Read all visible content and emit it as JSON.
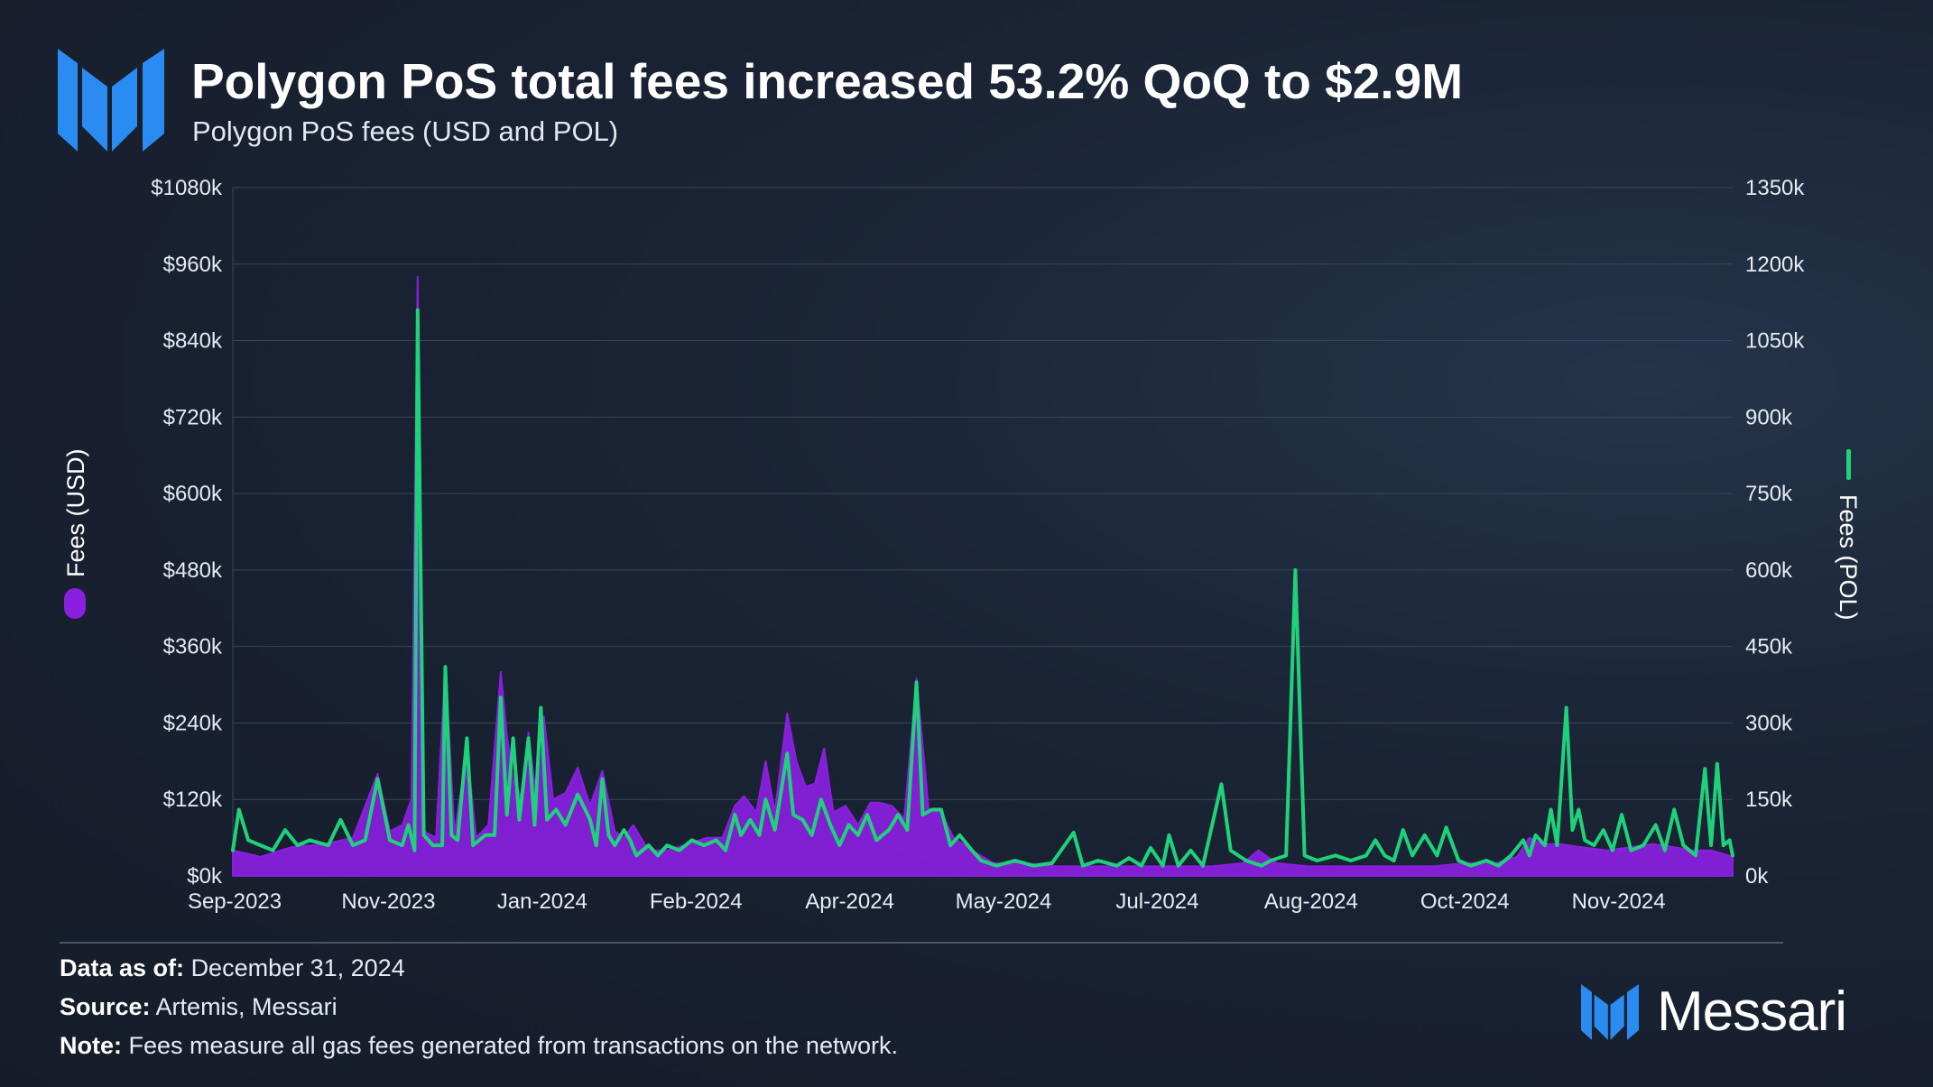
{
  "header": {
    "title": "Polygon PoS total fees increased 53.2% QoQ to $2.9M",
    "subtitle": "Polygon PoS fees (USD and POL)"
  },
  "colors": {
    "usd_series": "#8a1fe0",
    "pol_series": "#1fd17a",
    "grid": "#3a4556",
    "brand_blue": "#2a8cf0"
  },
  "chart_data": {
    "type": "area",
    "title": "Polygon PoS fees (USD and POL)",
    "x_tick_labels": [
      "Sep-2023",
      "Nov-2023",
      "Jan-2024",
      "Feb-2024",
      "Apr-2024",
      "May-2024",
      "Jul-2024",
      "Aug-2024",
      "Oct-2024",
      "Nov-2024"
    ],
    "y_left": {
      "label": "Fees (USD)",
      "ylim": [
        0,
        1080000
      ],
      "ticks": [
        "$0k",
        "$120k",
        "$240k",
        "$360k",
        "$480k",
        "$600k",
        "$720k",
        "$840k",
        "$960k",
        "$1080k"
      ]
    },
    "y_right": {
      "label": "Fees (POL)",
      "ylim": [
        0,
        1350000
      ],
      "ticks": [
        "0k",
        "150k",
        "300k",
        "450k",
        "600k",
        "750k",
        "900k",
        "1050k",
        "1200k",
        "1350k"
      ]
    },
    "x_range": [
      "2023-09-01",
      "2024-12-31"
    ],
    "series": [
      {
        "name": "Fees (USD)",
        "axis": "left",
        "style": "area",
        "points": [
          [
            "2023-09-01",
            40000
          ],
          [
            "2023-09-10",
            30000
          ],
          [
            "2023-09-20",
            45000
          ],
          [
            "2023-10-01",
            50000
          ],
          [
            "2023-10-10",
            60000
          ],
          [
            "2023-10-18",
            160000
          ],
          [
            "2023-10-22",
            70000
          ],
          [
            "2023-10-26",
            80000
          ],
          [
            "2023-10-29",
            120000
          ],
          [
            "2023-10-31",
            940000
          ],
          [
            "2023-11-02",
            70000
          ],
          [
            "2023-11-06",
            60000
          ],
          [
            "2023-11-09",
            330000
          ],
          [
            "2023-11-12",
            65000
          ],
          [
            "2023-11-16",
            200000
          ],
          [
            "2023-11-19",
            60000
          ],
          [
            "2023-11-23",
            80000
          ],
          [
            "2023-11-27",
            320000
          ],
          [
            "2023-11-29",
            220000
          ],
          [
            "2023-12-01",
            150000
          ],
          [
            "2023-12-04",
            120000
          ],
          [
            "2023-12-06",
            225000
          ],
          [
            "2023-12-09",
            100000
          ],
          [
            "2023-12-11",
            250000
          ],
          [
            "2023-12-14",
            120000
          ],
          [
            "2023-12-18",
            130000
          ],
          [
            "2023-12-22",
            170000
          ],
          [
            "2023-12-26",
            110000
          ],
          [
            "2023-12-30",
            165000
          ],
          [
            "2024-01-03",
            70000
          ],
          [
            "2024-01-06",
            60000
          ],
          [
            "2024-01-09",
            80000
          ],
          [
            "2024-01-14",
            40000
          ],
          [
            "2024-01-20",
            40000
          ],
          [
            "2024-01-27",
            50000
          ],
          [
            "2024-02-02",
            60000
          ],
          [
            "2024-02-07",
            60000
          ],
          [
            "2024-02-11",
            110000
          ],
          [
            "2024-02-14",
            125000
          ],
          [
            "2024-02-18",
            100000
          ],
          [
            "2024-02-21",
            180000
          ],
          [
            "2024-02-24",
            100000
          ],
          [
            "2024-02-28",
            255000
          ],
          [
            "2024-03-02",
            180000
          ],
          [
            "2024-03-05",
            140000
          ],
          [
            "2024-03-08",
            145000
          ],
          [
            "2024-03-11",
            200000
          ],
          [
            "2024-03-14",
            100000
          ],
          [
            "2024-03-18",
            110000
          ],
          [
            "2024-03-22",
            80000
          ],
          [
            "2024-03-26",
            115000
          ],
          [
            "2024-03-29",
            115000
          ],
          [
            "2024-04-02",
            110000
          ],
          [
            "2024-04-06",
            90000
          ],
          [
            "2024-04-10",
            310000
          ],
          [
            "2024-04-14",
            100000
          ],
          [
            "2024-04-18",
            100000
          ],
          [
            "2024-04-22",
            60000
          ],
          [
            "2024-04-28",
            40000
          ],
          [
            "2024-05-05",
            20000
          ],
          [
            "2024-05-15",
            20000
          ],
          [
            "2024-05-25",
            15000
          ],
          [
            "2024-06-05",
            15000
          ],
          [
            "2024-06-15",
            15000
          ],
          [
            "2024-06-25",
            15000
          ],
          [
            "2024-07-05",
            15000
          ],
          [
            "2024-07-15",
            15000
          ],
          [
            "2024-07-25",
            20000
          ],
          [
            "2024-07-30",
            40000
          ],
          [
            "2024-08-05",
            20000
          ],
          [
            "2024-08-15",
            15000
          ],
          [
            "2024-08-25",
            15000
          ],
          [
            "2024-09-05",
            15000
          ],
          [
            "2024-09-15",
            15000
          ],
          [
            "2024-09-25",
            15000
          ],
          [
            "2024-10-05",
            20000
          ],
          [
            "2024-10-15",
            20000
          ],
          [
            "2024-10-22",
            30000
          ],
          [
            "2024-10-26",
            60000
          ],
          [
            "2024-10-30",
            50000
          ],
          [
            "2024-11-05",
            50000
          ],
          [
            "2024-11-12",
            45000
          ],
          [
            "2024-11-20",
            40000
          ],
          [
            "2024-11-28",
            45000
          ],
          [
            "2024-12-05",
            50000
          ],
          [
            "2024-12-12",
            45000
          ],
          [
            "2024-12-18",
            40000
          ],
          [
            "2024-12-24",
            40000
          ],
          [
            "2024-12-31",
            30000
          ]
        ]
      },
      {
        "name": "Fees (POL)",
        "axis": "right",
        "style": "line",
        "points": [
          [
            "2023-09-01",
            50000
          ],
          [
            "2023-09-03",
            130000
          ],
          [
            "2023-09-06",
            70000
          ],
          [
            "2023-09-10",
            60000
          ],
          [
            "2023-09-14",
            50000
          ],
          [
            "2023-09-18",
            90000
          ],
          [
            "2023-09-22",
            60000
          ],
          [
            "2023-09-26",
            70000
          ],
          [
            "2023-10-02",
            60000
          ],
          [
            "2023-10-06",
            110000
          ],
          [
            "2023-10-10",
            60000
          ],
          [
            "2023-10-14",
            70000
          ],
          [
            "2023-10-18",
            190000
          ],
          [
            "2023-10-22",
            70000
          ],
          [
            "2023-10-26",
            60000
          ],
          [
            "2023-10-28",
            100000
          ],
          [
            "2023-10-30",
            50000
          ],
          [
            "2023-10-31",
            1110000
          ],
          [
            "2023-11-02",
            80000
          ],
          [
            "2023-11-05",
            60000
          ],
          [
            "2023-11-08",
            60000
          ],
          [
            "2023-11-09",
            410000
          ],
          [
            "2023-11-11",
            80000
          ],
          [
            "2023-11-13",
            70000
          ],
          [
            "2023-11-16",
            270000
          ],
          [
            "2023-11-18",
            60000
          ],
          [
            "2023-11-22",
            80000
          ],
          [
            "2023-11-25",
            80000
          ],
          [
            "2023-11-27",
            350000
          ],
          [
            "2023-11-29",
            120000
          ],
          [
            "2023-12-01",
            270000
          ],
          [
            "2023-12-03",
            110000
          ],
          [
            "2023-12-06",
            270000
          ],
          [
            "2023-12-08",
            100000
          ],
          [
            "2023-12-10",
            330000
          ],
          [
            "2023-12-12",
            110000
          ],
          [
            "2023-12-15",
            130000
          ],
          [
            "2023-12-18",
            100000
          ],
          [
            "2023-12-22",
            160000
          ],
          [
            "2023-12-26",
            110000
          ],
          [
            "2023-12-28",
            60000
          ],
          [
            "2023-12-30",
            190000
          ],
          [
            "2024-01-01",
            80000
          ],
          [
            "2024-01-03",
            60000
          ],
          [
            "2024-01-06",
            90000
          ],
          [
            "2024-01-08",
            70000
          ],
          [
            "2024-01-10",
            40000
          ],
          [
            "2024-01-14",
            60000
          ],
          [
            "2024-01-17",
            40000
          ],
          [
            "2024-01-20",
            60000
          ],
          [
            "2024-01-24",
            50000
          ],
          [
            "2024-01-28",
            70000
          ],
          [
            "2024-02-01",
            60000
          ],
          [
            "2024-02-05",
            70000
          ],
          [
            "2024-02-08",
            50000
          ],
          [
            "2024-02-11",
            120000
          ],
          [
            "2024-02-13",
            80000
          ],
          [
            "2024-02-16",
            110000
          ],
          [
            "2024-02-19",
            80000
          ],
          [
            "2024-02-21",
            150000
          ],
          [
            "2024-02-24",
            90000
          ],
          [
            "2024-02-28",
            240000
          ],
          [
            "2024-03-01",
            120000
          ],
          [
            "2024-03-04",
            110000
          ],
          [
            "2024-03-07",
            80000
          ],
          [
            "2024-03-10",
            150000
          ],
          [
            "2024-03-13",
            100000
          ],
          [
            "2024-03-16",
            60000
          ],
          [
            "2024-03-19",
            100000
          ],
          [
            "2024-03-22",
            80000
          ],
          [
            "2024-03-25",
            120000
          ],
          [
            "2024-03-28",
            70000
          ],
          [
            "2024-04-01",
            90000
          ],
          [
            "2024-04-04",
            120000
          ],
          [
            "2024-04-07",
            90000
          ],
          [
            "2024-04-10",
            380000
          ],
          [
            "2024-04-12",
            120000
          ],
          [
            "2024-04-15",
            130000
          ],
          [
            "2024-04-18",
            130000
          ],
          [
            "2024-04-21",
            60000
          ],
          [
            "2024-04-24",
            80000
          ],
          [
            "2024-04-28",
            50000
          ],
          [
            "2024-05-01",
            30000
          ],
          [
            "2024-05-06",
            20000
          ],
          [
            "2024-05-12",
            30000
          ],
          [
            "2024-05-18",
            20000
          ],
          [
            "2024-05-24",
            25000
          ],
          [
            "2024-05-31",
            85000
          ],
          [
            "2024-06-03",
            20000
          ],
          [
            "2024-06-08",
            30000
          ],
          [
            "2024-06-14",
            20000
          ],
          [
            "2024-06-18",
            35000
          ],
          [
            "2024-06-22",
            20000
          ],
          [
            "2024-06-25",
            55000
          ],
          [
            "2024-06-29",
            20000
          ],
          [
            "2024-07-01",
            80000
          ],
          [
            "2024-07-04",
            20000
          ],
          [
            "2024-07-08",
            50000
          ],
          [
            "2024-07-12",
            20000
          ],
          [
            "2024-07-18",
            180000
          ],
          [
            "2024-07-21",
            50000
          ],
          [
            "2024-07-26",
            30000
          ],
          [
            "2024-07-31",
            20000
          ],
          [
            "2024-08-03",
            30000
          ],
          [
            "2024-08-08",
            40000
          ],
          [
            "2024-08-11",
            600000
          ],
          [
            "2024-08-14",
            40000
          ],
          [
            "2024-08-18",
            30000
          ],
          [
            "2024-08-24",
            40000
          ],
          [
            "2024-08-29",
            30000
          ],
          [
            "2024-09-03",
            40000
          ],
          [
            "2024-09-06",
            70000
          ],
          [
            "2024-09-09",
            40000
          ],
          [
            "2024-09-12",
            30000
          ],
          [
            "2024-09-15",
            90000
          ],
          [
            "2024-09-18",
            40000
          ],
          [
            "2024-09-22",
            80000
          ],
          [
            "2024-09-26",
            40000
          ],
          [
            "2024-09-29",
            95000
          ],
          [
            "2024-10-03",
            30000
          ],
          [
            "2024-10-07",
            20000
          ],
          [
            "2024-10-12",
            30000
          ],
          [
            "2024-10-16",
            20000
          ],
          [
            "2024-10-20",
            40000
          ],
          [
            "2024-10-24",
            70000
          ],
          [
            "2024-10-26",
            40000
          ],
          [
            "2024-10-28",
            80000
          ],
          [
            "2024-10-31",
            60000
          ],
          [
            "2024-11-02",
            130000
          ],
          [
            "2024-11-04",
            60000
          ],
          [
            "2024-11-07",
            330000
          ],
          [
            "2024-11-09",
            90000
          ],
          [
            "2024-11-11",
            130000
          ],
          [
            "2024-11-13",
            70000
          ],
          [
            "2024-11-16",
            60000
          ],
          [
            "2024-11-19",
            90000
          ],
          [
            "2024-11-22",
            50000
          ],
          [
            "2024-11-25",
            120000
          ],
          [
            "2024-11-28",
            50000
          ],
          [
            "2024-12-02",
            60000
          ],
          [
            "2024-12-06",
            100000
          ],
          [
            "2024-12-09",
            50000
          ],
          [
            "2024-12-12",
            130000
          ],
          [
            "2024-12-15",
            60000
          ],
          [
            "2024-12-19",
            40000
          ],
          [
            "2024-12-22",
            210000
          ],
          [
            "2024-12-24",
            60000
          ],
          [
            "2024-12-26",
            220000
          ],
          [
            "2024-12-28",
            60000
          ],
          [
            "2024-12-30",
            70000
          ],
          [
            "2024-12-31",
            40000
          ]
        ]
      }
    ]
  },
  "footer": {
    "data_as_of_label": "Data as of:",
    "data_as_of_value": "December 31, 2024",
    "source_label": "Source:",
    "source_value": "Artemis, Messari",
    "note_label": "Note:",
    "note_value": "Fees measure all gas fees generated from transactions on the network.",
    "brand_name": "Messari"
  }
}
